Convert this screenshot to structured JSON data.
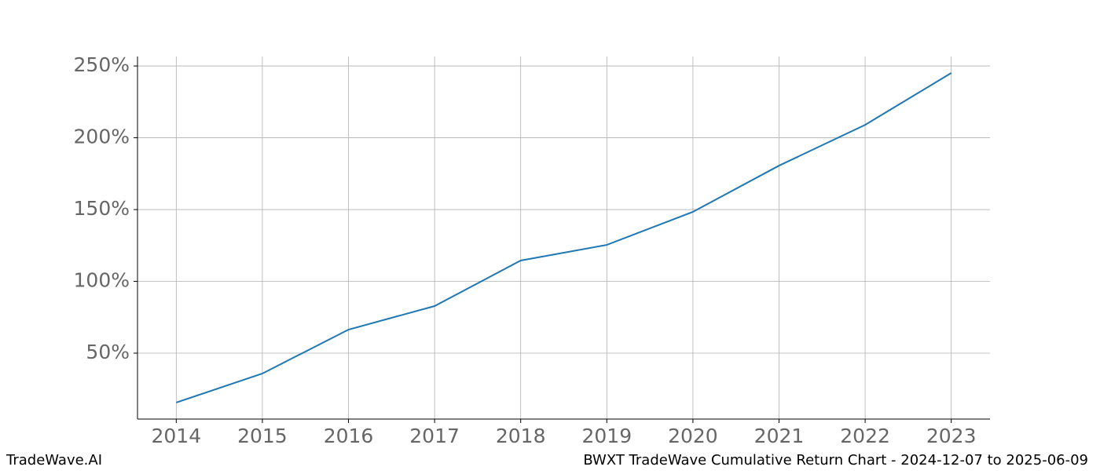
{
  "chart_data": {
    "type": "line",
    "x": [
      2014,
      2015,
      2016,
      2017,
      2018,
      2019,
      2020,
      2021,
      2022,
      2023
    ],
    "series": [
      {
        "color": "#1f77b4",
        "values": [
          15.6,
          35.8,
          66.4,
          82.8,
          114.5,
          125.4,
          148.4,
          180.6,
          209.0,
          245.1
        ]
      }
    ],
    "xlim": [
      2013.55,
      2023.45
    ],
    "xticks": [
      2014,
      2015,
      2016,
      2017,
      2018,
      2019,
      2020,
      2021,
      2022,
      2023
    ],
    "ylim": [
      4.1,
      256.6
    ],
    "yticks": [
      {
        "value": 50,
        "label": "50%"
      },
      {
        "value": 100,
        "label": "100%"
      },
      {
        "value": 150,
        "label": "150%"
      },
      {
        "value": 200,
        "label": "200%"
      },
      {
        "value": 250,
        "label": "250%"
      }
    ],
    "grid": true,
    "watermark": "TradeWave.AI",
    "caption": "BWXT TradeWave Cumulative Return Chart - 2024-12-07 to 2025-06-09"
  }
}
